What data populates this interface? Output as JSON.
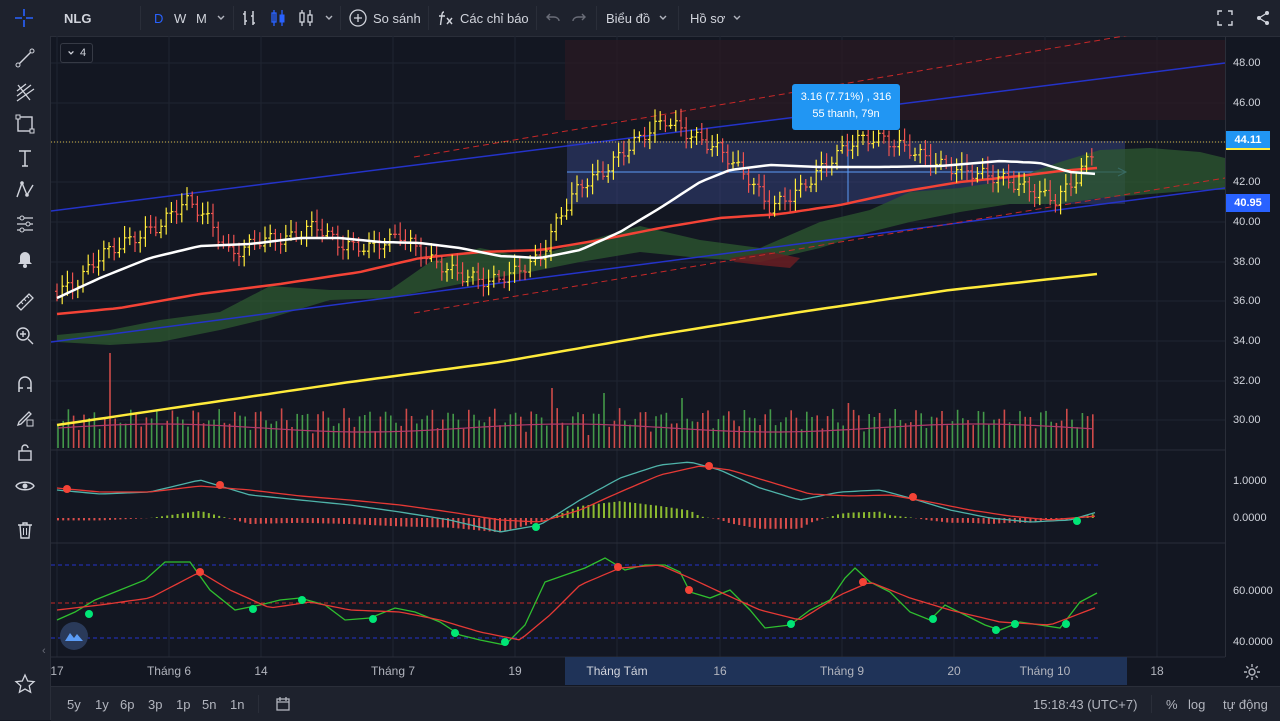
{
  "toolbar": {
    "symbol": "NLG",
    "intervals": [
      "D",
      "W",
      "M"
    ],
    "compare_label": "So sánh",
    "indicators_label": "Các chỉ báo",
    "chart_label": "Biểu đồ",
    "profile_label": "Hồ sơ"
  },
  "legend": {
    "collapse_count": "4"
  },
  "tooltip": {
    "line1": "3.16 (7.71%) , 316",
    "line2": "55 thanh, 79n"
  },
  "price_axis": {
    "main": [
      "48.00",
      "46.00",
      "44.11",
      "42.00",
      "40.95",
      "40.00",
      "38.00",
      "36.00",
      "34.00",
      "32.00",
      "30.00"
    ],
    "current_tag": "44.11",
    "range_tag": "40.95",
    "macd": [
      "1.0000",
      "0.0000"
    ],
    "stoch": [
      "60.0000",
      "40.0000"
    ]
  },
  "time_axis": [
    "17",
    "Tháng 6",
    "14",
    "Tháng 7",
    "19",
    "Tháng Tám",
    "16",
    "Tháng 9",
    "20",
    "Tháng 10",
    "18"
  ],
  "bottom": {
    "ranges": [
      "5y",
      "1y",
      "6p",
      "3p",
      "1p",
      "5n",
      "1n"
    ],
    "clock": "15:18:43 (UTC+7)",
    "percent": "%",
    "log": "log",
    "auto": "tự động"
  },
  "colors": {
    "up": "#ffeb3b",
    "down": "#ef5350",
    "volume_up": "#4caf50",
    "volume_down": "#ef5350",
    "sma_white": "#ffffff",
    "ema_red": "#f44336",
    "sma_yellow": "#ffeb3b",
    "channel_blue": "#2962ff",
    "accent": "#2196f3"
  }
}
